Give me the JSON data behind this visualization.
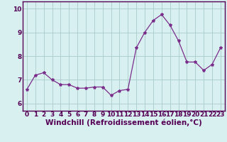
{
  "x": [
    0,
    1,
    2,
    3,
    4,
    5,
    6,
    7,
    8,
    9,
    10,
    11,
    12,
    13,
    14,
    15,
    16,
    17,
    18,
    19,
    20,
    21,
    22,
    23
  ],
  "y": [
    6.6,
    7.2,
    7.3,
    7.0,
    6.8,
    6.8,
    6.65,
    6.65,
    6.7,
    6.7,
    6.35,
    6.55,
    6.6,
    8.35,
    9.0,
    9.5,
    9.75,
    9.3,
    8.65,
    7.75,
    7.75,
    7.4,
    7.65,
    8.35
  ],
  "line_color": "#7B2D8B",
  "marker": "*",
  "marker_size": 3,
  "bg_color": "#d9f0f0",
  "grid_color": "#aacccc",
  "xlabel": "Windchill (Refroidissement éolien,°C)",
  "xlabel_fontsize": 7.5,
  "tick_fontsize": 6.5,
  "ylim": [
    5.7,
    10.3
  ],
  "xlim": [
    -0.5,
    23.5
  ],
  "yticks": [
    6,
    7,
    8,
    9,
    10
  ],
  "xticks": [
    0,
    1,
    2,
    3,
    4,
    5,
    6,
    7,
    8,
    9,
    10,
    11,
    12,
    13,
    14,
    15,
    16,
    17,
    18,
    19,
    20,
    21,
    22,
    23
  ],
  "spine_color": "#550055"
}
